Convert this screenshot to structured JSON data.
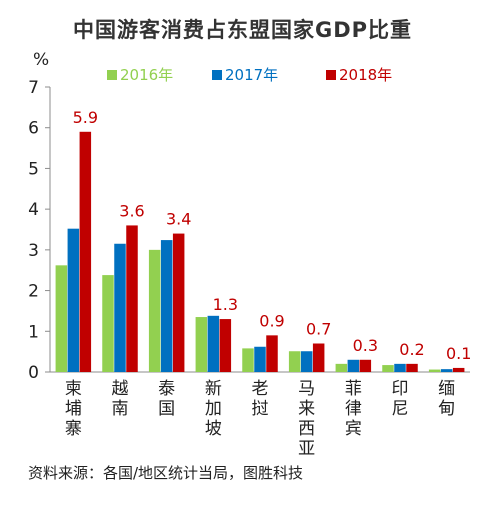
{
  "chart_data": {
    "type": "bar",
    "title": "中国游客消费占东盟国家GDP比重",
    "ylabel": "%",
    "xlabel": "",
    "ylim": [
      0,
      7
    ],
    "yticks": [
      0,
      1,
      2,
      3,
      4,
      5,
      6,
      7
    ],
    "grid": false,
    "legend_position": "top",
    "categories": [
      "柬埔寨",
      "越南",
      "泰国",
      "新加坡",
      "老挝",
      "马来西亚",
      "菲律宾",
      "印尼",
      "缅甸"
    ],
    "series": [
      {
        "name": "2016年",
        "color": "#92D050",
        "values": [
          2.62,
          2.38,
          3.0,
          1.35,
          0.58,
          0.51,
          0.2,
          0.17,
          0.06
        ]
      },
      {
        "name": "2017年",
        "color": "#0070C0",
        "values": [
          3.52,
          3.15,
          3.24,
          1.38,
          0.62,
          0.51,
          0.3,
          0.2,
          0.07
        ]
      },
      {
        "name": "2018年",
        "color": "#C00000",
        "values": [
          5.9,
          3.6,
          3.4,
          1.3,
          0.9,
          0.7,
          0.3,
          0.2,
          0.1
        ]
      }
    ],
    "data_labels": [
      "5.9",
      "3.6",
      "3.4",
      "1.3",
      "0.9",
      "0.7",
      "0.3",
      "0.2",
      "0.1"
    ],
    "data_label_color": "#C00000"
  },
  "source_note": "资料来源：各国/地区统计当局，图胜科技"
}
